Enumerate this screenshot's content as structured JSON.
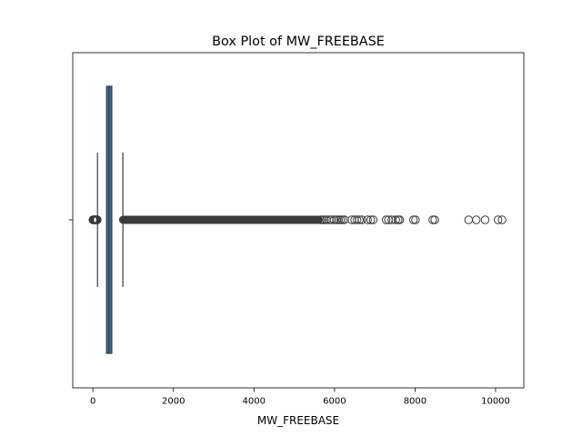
{
  "chart_data": {
    "type": "box",
    "title": "Box Plot of MW_FREEBASE",
    "xlabel": "MW_FREEBASE",
    "ylabel": "",
    "xlim": [
      -500,
      10700
    ],
    "xticks": [
      0,
      2000,
      4000,
      6000,
      8000,
      10000
    ],
    "xtick_labels": [
      "0",
      "2000",
      "4000",
      "6000",
      "8000",
      "10000"
    ],
    "grid": false,
    "box": {
      "q1": 340,
      "median": 400,
      "q3": 470,
      "whisker_low": 115,
      "whisker_high": 745,
      "color": "#3a6e9e",
      "edge_color": "#3b3b3b"
    },
    "outliers_low": [
      0,
      10,
      20,
      30,
      40,
      50,
      60,
      70,
      80,
      90,
      100,
      110
    ],
    "outliers_high_dense_range": [
      750,
      5600
    ],
    "outliers_high": [
      5650,
      5700,
      5750,
      5800,
      5870,
      5920,
      5990,
      6050,
      6100,
      6150,
      6200,
      6250,
      6430,
      6500,
      6560,
      6620,
      6680,
      6820,
      6900,
      6960,
      7280,
      7340,
      7420,
      7520,
      7580,
      7620,
      7960,
      8010,
      8440,
      8490,
      9330,
      9520,
      9740,
      10060,
      10160
    ]
  }
}
